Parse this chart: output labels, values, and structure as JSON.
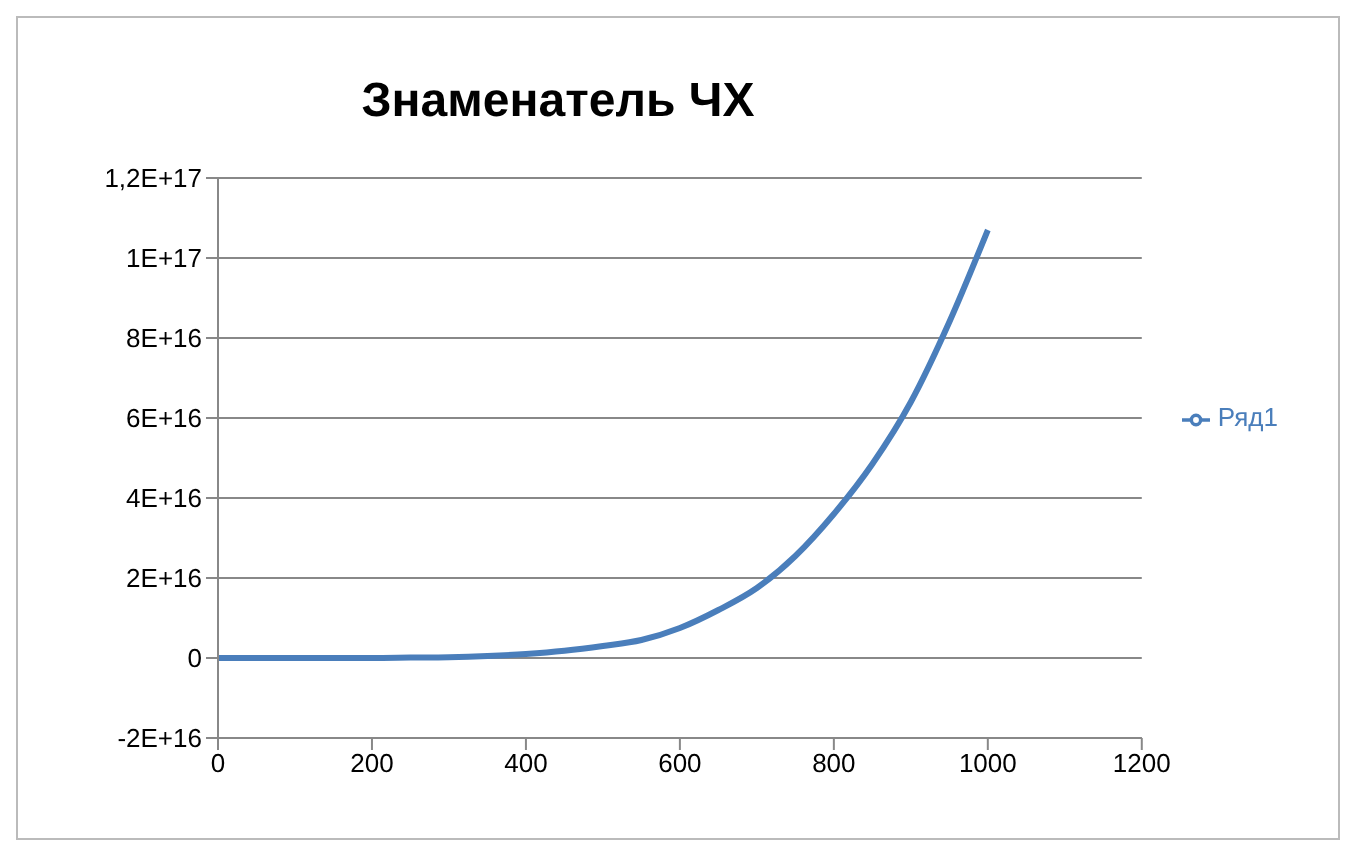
{
  "chart_data": {
    "type": "line",
    "title": "Знаменатель ЧХ",
    "x": [
      0,
      50,
      100,
      150,
      200,
      250,
      300,
      350,
      400,
      450,
      500,
      550,
      600,
      650,
      700,
      750,
      800,
      850,
      900,
      950,
      1000
    ],
    "series": [
      {
        "name": "Ряд1",
        "color": "#4a7ebb",
        "values": [
          0,
          0,
          0,
          0,
          0,
          100000000000000,
          200000000000000,
          500000000000000,
          1000000000000000,
          1800000000000000,
          3000000000000000,
          4500000000000000,
          7500000000000000,
          12000000000000000,
          17500000000000000,
          25500000000000000,
          36000000000000000,
          48500000000000000,
          64000000000000000,
          84000000000000000,
          107000000000000000
        ]
      }
    ],
    "xlim": [
      0,
      1200
    ],
    "xticks": [
      0,
      200,
      400,
      600,
      800,
      1000,
      1200
    ],
    "ylim": [
      -20000000000000000,
      120000000000000000
    ],
    "yticks": [
      {
        "value": -20000000000000000,
        "label": "-2E+16"
      },
      {
        "value": 0,
        "label": "0"
      },
      {
        "value": 20000000000000000,
        "label": "2E+16"
      },
      {
        "value": 40000000000000000,
        "label": "4E+16"
      },
      {
        "value": 60000000000000000,
        "label": "6E+16"
      },
      {
        "value": 80000000000000000,
        "label": "8E+16"
      },
      {
        "value": 100000000000000000,
        "label": "1E+17"
      },
      {
        "value": 120000000000000000,
        "label": "1,2E+17"
      }
    ],
    "grid": "y",
    "legend": "right",
    "marker": "none",
    "line_style": "solid"
  }
}
